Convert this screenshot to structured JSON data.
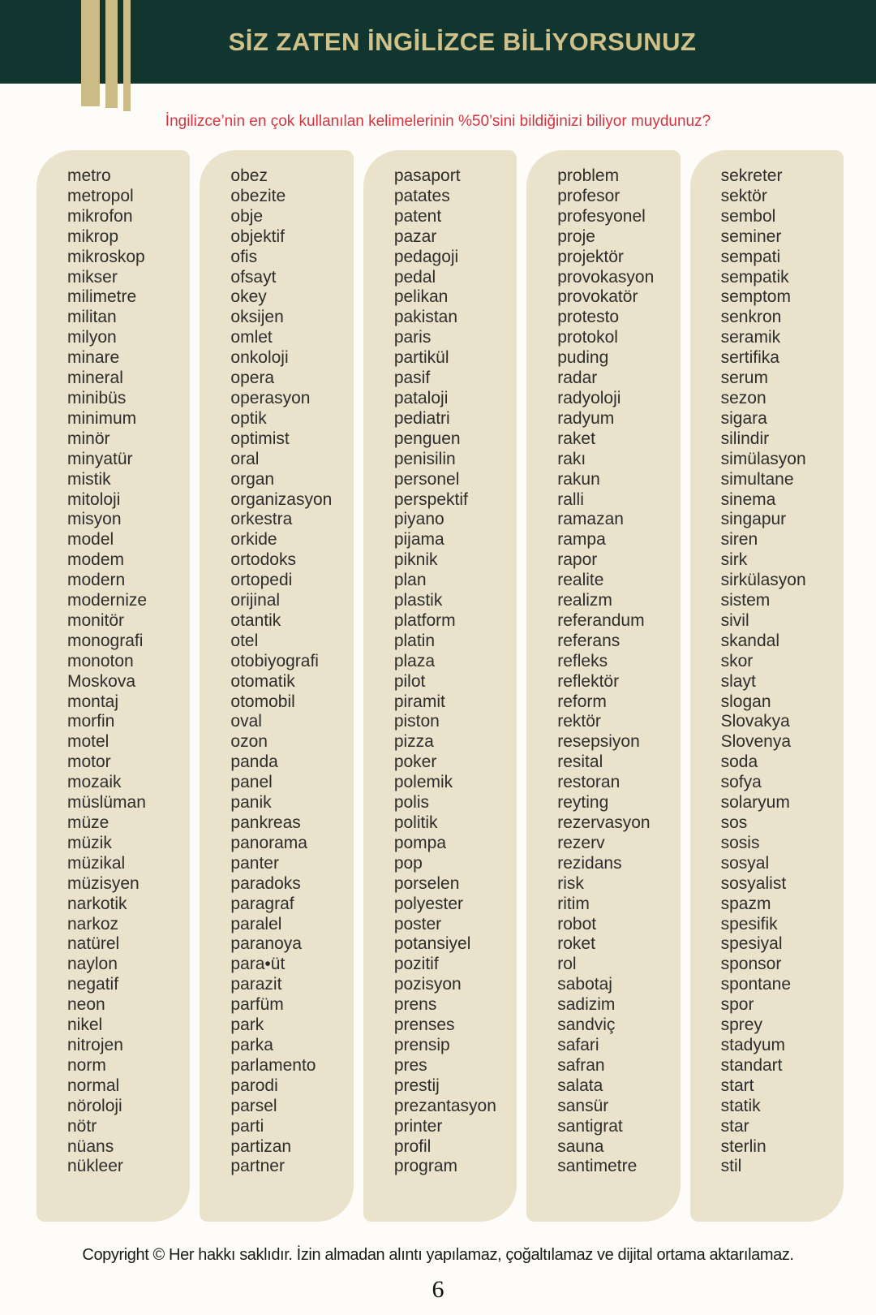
{
  "header": {
    "title": "SİZ ZATEN İNGİLİZCE BİLİYORSUNUZ",
    "subtitle": "İngilizce’nin en çok kullanılan kelimelerinin %50’sini bildiğinizi biliyor muydunuz?"
  },
  "colors": {
    "header_bg": "#11362f",
    "gold_accent": "#cbbc85",
    "title_gold": "#cfc189",
    "subtitle_red": "#d43440",
    "card_bg": "#eae2cb",
    "word_text": "#2d2d2d"
  },
  "columns": [
    {
      "words": [
        "metro",
        "metropol",
        "mikrofon",
        "mikrop",
        "mikroskop",
        "mikser",
        "milimetre",
        "militan",
        "milyon",
        "minare",
        "mineral",
        "minibüs",
        "minimum",
        "minör",
        "minyatür",
        "mistik",
        "mitoloji",
        "misyon",
        "model",
        "modem",
        "modern",
        "modernize",
        "monitör",
        "monografi",
        "monoton",
        "Moskova",
        "montaj",
        "morfin",
        "motel",
        "motor",
        "mozaik",
        "müslüman",
        "müze",
        "müzik",
        "müzikal",
        "müzisyen",
        "narkotik",
        "narkoz",
        "natürel",
        "naylon",
        "negatif",
        "neon",
        "nikel",
        "nitrojen",
        "norm",
        "normal",
        "nöroloji",
        "nötr",
        "nüans",
        "nükleer"
      ]
    },
    {
      "words": [
        "obez",
        "obezite",
        "obje",
        "objektif",
        "ofis",
        "ofsayt",
        "okey",
        "oksijen",
        "omlet",
        "onkoloji",
        "opera",
        "operasyon",
        "optik",
        "optimist",
        "oral",
        "organ",
        "organizasyon",
        "orkestra",
        "orkide",
        "ortodoks",
        "ortopedi",
        "orijinal",
        "otantik",
        "otel",
        "otobiyografi",
        "otomatik",
        "otomobil",
        "oval",
        "ozon",
        "panda",
        "panel",
        "panik",
        "pankreas",
        "panorama",
        "panter",
        "paradoks",
        "paragraf",
        "paralel",
        "paranoya",
        "para•üt",
        "parazit",
        "parfüm",
        "park",
        "parka",
        "parlamento",
        "parodi",
        "parsel",
        "parti",
        "partizan",
        "partner"
      ]
    },
    {
      "words": [
        "pasaport",
        "patates",
        "patent",
        "pazar",
        "pedagoji",
        "pedal",
        "pelikan",
        "pakistan",
        "paris",
        "partikül",
        "pasif",
        "pataloji",
        "pediatri",
        "penguen",
        "penisilin",
        "personel",
        "perspektif",
        "piyano",
        "pijama",
        "piknik",
        "plan",
        "plastik",
        "platform",
        "platin",
        "plaza",
        "pilot",
        "piramit",
        "piston",
        "pizza",
        "poker",
        "polemik",
        "polis",
        "politik",
        "pompa",
        "pop",
        "porselen",
        "polyester",
        "poster",
        "potansiyel",
        "pozitif",
        "pozisyon",
        "prens",
        "prenses",
        "prensip",
        "pres",
        "prestij",
        "prezantasyon",
        "printer",
        "profil",
        "program"
      ]
    },
    {
      "words": [
        "problem",
        "profesor",
        "profesyonel",
        "proje",
        "projektör",
        "provokasyon",
        "provokatör",
        "protesto",
        "protokol",
        "puding",
        "radar",
        "radyoloji",
        "radyum",
        "raket",
        "rakı",
        "rakun",
        "ralli",
        "ramazan",
        "rampa",
        "rapor",
        "realite",
        "realizm",
        "referandum",
        "referans",
        "refleks",
        "reflektör",
        "reform",
        "rektör",
        "resepsiyon",
        "resital",
        "restoran",
        "reyting",
        "rezervasyon",
        "rezerv",
        "rezidans",
        "risk",
        "ritim",
        "robot",
        "roket",
        "rol",
        "sabotaj",
        "sadizim",
        "sandviç",
        "safari",
        "safran",
        "salata",
        "sansür",
        "santigrat",
        "sauna",
        "santimetre"
      ]
    },
    {
      "words": [
        "sekreter",
        "sektör",
        "sembol",
        "seminer",
        "sempati",
        "sempatik",
        "semptom",
        "senkron",
        "seramik",
        "sertifika",
        "serum",
        "sezon",
        "sigara",
        "silindir",
        "simülasyon",
        "simultane",
        "sinema",
        "singapur",
        "siren",
        "sirk",
        "sirkülasyon",
        "sistem",
        "sivil",
        "skandal",
        "skor",
        "slayt",
        "slogan",
        "Slovakya",
        "Slovenya",
        "soda",
        "sofya",
        "solaryum",
        "sos",
        "sosis",
        "sosyal",
        "sosyalist",
        "spazm",
        "spesifik",
        "spesiyal",
        "sponsor",
        "spontane",
        "spor",
        "sprey",
        "stadyum",
        "standart",
        "start",
        "statik",
        "star",
        "sterlin",
        "stil"
      ]
    }
  ],
  "footer": {
    "copyright": "Copyright © Her hakkı saklıdır. İzin almadan alıntı yapılamaz, çoğaltılamaz ve dijital ortama aktarılamaz.",
    "page_number": "6"
  }
}
